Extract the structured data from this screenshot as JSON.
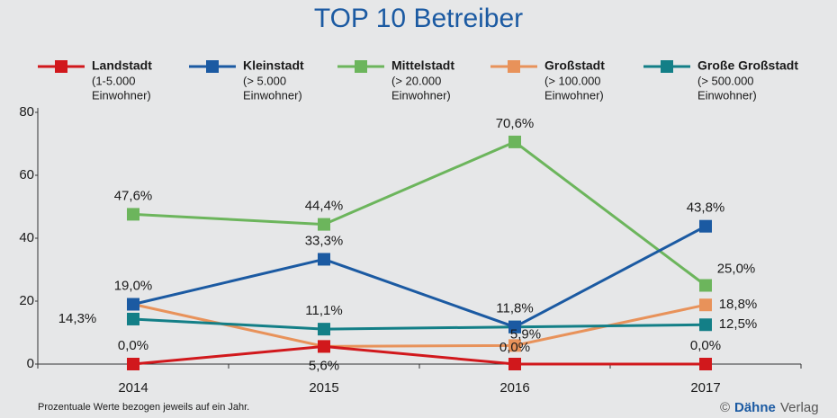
{
  "chart_data": {
    "type": "line",
    "title": "TOP 10 Betreiber",
    "categories": [
      "2014",
      "2015",
      "2016",
      "2017"
    ],
    "ylim": [
      0,
      80
    ],
    "yticks": [
      0,
      20,
      40,
      60,
      80
    ],
    "series": [
      {
        "name": "Landstadt",
        "legend_detail": [
          "(1-5.000",
          "Einwohner)"
        ],
        "color": "#d1181c",
        "values": [
          0,
          5.6,
          0,
          0
        ],
        "value_labels": [
          "0,0%",
          "5,6%",
          "0,0%",
          "0,0%"
        ]
      },
      {
        "name": "Kleinstadt",
        "legend_detail": [
          "(> 5.000",
          "Einwohner)"
        ],
        "color": "#1b5aa2",
        "values": [
          19.0,
          33.3,
          11.8,
          43.8
        ],
        "value_labels": [
          null,
          "33,3%",
          "11,8%",
          "43,8%"
        ]
      },
      {
        "name": "Mittelstadt",
        "legend_detail": [
          "(> 20.000",
          "Einwohner)"
        ],
        "color": "#6cb55c",
        "values": [
          47.6,
          44.4,
          70.6,
          25.0
        ],
        "value_labels": [
          "47,6%",
          "44,4%",
          "70,6%",
          "25,0%"
        ]
      },
      {
        "name": "Großstadt",
        "legend_detail": [
          "(> 100.000",
          "Einwohner)"
        ],
        "color": "#e8925a",
        "values": [
          19.0,
          5.6,
          5.9,
          18.8
        ],
        "value_labels": [
          "19,0%",
          null,
          "5,9%",
          "18,8%"
        ]
      },
      {
        "name": "Große Großstadt",
        "legend_detail": [
          "(> 500.000",
          "Einwohner)"
        ],
        "color": "#137f87",
        "values": [
          14.3,
          11.1,
          11.8,
          12.5
        ],
        "value_labels": [
          "14,3%",
          "11,1%",
          null,
          "12,5%"
        ]
      }
    ],
    "footnote": "Prozentuale Werte bezogen jeweils auf ein Jahr.",
    "copyright": "©",
    "publisher_bold": "Dähne",
    "publisher_light": "Verlag"
  }
}
